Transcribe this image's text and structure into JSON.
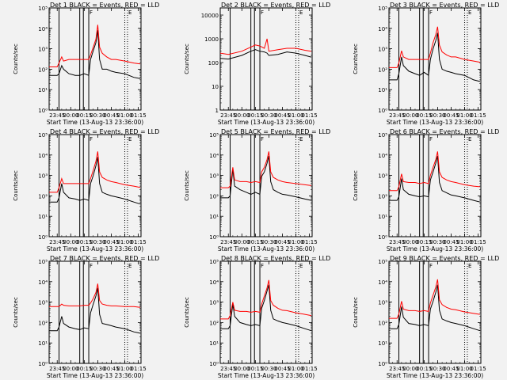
{
  "panels": [
    {
      "title": "Det  1  BLACK = Events, RED = LLD",
      "ylabel": "Counts/sec",
      "xlabel": "Start Time (13-Aug-13 23:36:00)",
      "yticks": [
        "10⁰",
        "10¹",
        "10²",
        "10³",
        "10⁴",
        "10⁵"
      ]
    },
    {
      "title": "Det  2  BLACK = Events, RED = LLD",
      "ylabel": "Counts/sec",
      "xlabel": "Start Time (13-Aug-13 23:36:00)",
      "yticks": [
        "1",
        "10",
        "100",
        "1000",
        "10000"
      ]
    },
    {
      "title": "Det  3  BLACK = Events, RED = LLD",
      "ylabel": "Counts/sec",
      "xlabel": "Start Time (13-Aug-13 23:36:00)",
      "yticks": [
        "10⁰",
        "10¹",
        "10²",
        "10³",
        "10⁴",
        "10⁵"
      ]
    },
    {
      "title": "Det  4  BLACK = Events, RED = LLD",
      "ylabel": "Counts/sec",
      "xlabel": "Start Time (13-Aug-13 23:36:00)",
      "yticks": [
        "10⁰",
        "10¹",
        "10²",
        "10³",
        "10⁴",
        "10⁵"
      ]
    },
    {
      "title": "Det  5  BLACK = Events, RED = LLD",
      "ylabel": "Counts/sec",
      "xlabel": "Start Time (13-Aug-13 23:36:00)",
      "yticks": [
        "10⁰",
        "10¹",
        "10²",
        "10³",
        "10⁴",
        "10⁵"
      ]
    },
    {
      "title": "Det  6  BLACK = Events, RED = LLD",
      "ylabel": "Counts/sec",
      "xlabel": "Start Time (13-Aug-13 23:36:00)",
      "yticks": [
        "10⁰",
        "10¹",
        "10²",
        "10³",
        "10⁴",
        "10⁵"
      ]
    },
    {
      "title": "Det  7  BLACK = Events, RED = LLD",
      "ylabel": "Counts/sec",
      "xlabel": "Start Time (13-Aug-13 23:36:00)",
      "yticks": [
        "10⁰",
        "10¹",
        "10²",
        "10³",
        "10⁴",
        "10⁵"
      ]
    },
    {
      "title": "Det  8  BLACK = Events, RED = LLD",
      "ylabel": "Counts/sec",
      "xlabel": "Start Time (13-Aug-13 23:36:00)",
      "yticks": [
        "10⁰",
        "10¹",
        "10²",
        "10³",
        "10⁴",
        "10⁵"
      ]
    },
    {
      "title": "Det  9  BLACK = Events, RED = LLD",
      "ylabel": "Counts/sec",
      "xlabel": "Start Time (13-Aug-13 23:36:00)",
      "yticks": [
        "10⁰",
        "10¹",
        "10²",
        "10³",
        "10⁴",
        "10⁵"
      ]
    }
  ],
  "chart_data": {
    "type": "line",
    "x_tick_labels": [
      "23:45",
      "00:00",
      "00:15",
      "00:30",
      "00:45",
      "01:00",
      "01:15"
    ],
    "x_ticks": [
      "23:45",
      "00:00",
      "00:15",
      "00:30",
      "00:45",
      "01:00",
      "01:15"
    ],
    "x_range": [
      "23:36",
      "01:18"
    ],
    "y_scale": "log",
    "colors": {
      "events": "#000000",
      "lld": "#ff0000"
    },
    "markers": {
      "solid_vertical_lines": [
        "23:47",
        "00:10",
        "00:14",
        "00:20"
      ],
      "dotted_vertical_lines": [
        "01:00",
        "01:03"
      ],
      "flag_labels": [
        "F",
        "E"
      ],
      "flag_times": [
        "00:20",
        "01:03"
      ]
    },
    "panels": [
      {
        "ylim": [
          1,
          100000
        ],
        "events": {
          "x": [
            "23:36",
            "23:45",
            "23:47",
            "23:50",
            "23:52",
            "23:58",
            "00:05",
            "00:10",
            "00:15",
            "00:20",
            "00:22",
            "00:25",
            "00:28",
            "00:30",
            "00:32",
            "00:35",
            "00:40",
            "00:45",
            "00:50",
            "01:00",
            "01:10",
            "01:17"
          ],
          "y": [
            50,
            50,
            60,
            150,
            100,
            60,
            50,
            50,
            60,
            50,
            300,
            800,
            2000,
            8000,
            300,
            100,
            100,
            80,
            70,
            60,
            40,
            35
          ]
        },
        "lld": {
          "x": [
            "23:36",
            "23:45",
            "23:47",
            "23:50",
            "23:52",
            "23:58",
            "00:05",
            "00:10",
            "00:15",
            "00:20",
            "00:22",
            "00:25",
            "00:28",
            "00:30",
            "00:32",
            "00:35",
            "00:40",
            "00:45",
            "00:50",
            "01:00",
            "01:10",
            "01:17"
          ],
          "y": [
            130,
            130,
            200,
            400,
            250,
            300,
            300,
            300,
            300,
            300,
            500,
            1200,
            3000,
            15000,
            1200,
            600,
            400,
            300,
            300,
            250,
            200,
            180
          ]
        }
      },
      {
        "ylim": [
          1,
          20000
        ],
        "events": {
          "x": [
            "23:36",
            "23:45",
            "00:00",
            "00:10",
            "00:15",
            "00:20",
            "00:25",
            "00:28",
            "00:30",
            "00:40",
            "00:50",
            "01:00",
            "01:10",
            "01:17"
          ],
          "y": [
            150,
            140,
            200,
            300,
            350,
            300,
            280,
            250,
            200,
            220,
            280,
            250,
            200,
            170
          ]
        },
        "lld": {
          "x": [
            "23:36",
            "23:45",
            "00:00",
            "00:10",
            "00:15",
            "00:20",
            "00:25",
            "00:28",
            "00:30",
            "00:40",
            "00:50",
            "01:00",
            "01:10",
            "01:17"
          ],
          "y": [
            250,
            220,
            300,
            450,
            550,
            500,
            400,
            1000,
            300,
            350,
            400,
            400,
            330,
            300
          ]
        }
      },
      {
        "ylim": [
          1,
          100000
        ],
        "events": {
          "x": [
            "23:36",
            "23:45",
            "23:47",
            "23:50",
            "23:52",
            "23:58",
            "00:05",
            "00:10",
            "00:15",
            "00:20",
            "00:22",
            "00:25",
            "00:28",
            "00:30",
            "00:32",
            "00:35",
            "00:40",
            "00:45",
            "00:50",
            "01:00",
            "01:10",
            "01:17"
          ],
          "y": [
            30,
            30,
            60,
            400,
            150,
            80,
            60,
            50,
            70,
            50,
            300,
            1000,
            2500,
            6000,
            300,
            100,
            80,
            70,
            60,
            50,
            30,
            25
          ]
        },
        "lld": {
          "x": [
            "23:36",
            "23:45",
            "23:47",
            "23:50",
            "23:52",
            "23:58",
            "00:05",
            "00:10",
            "00:15",
            "00:20",
            "00:22",
            "00:25",
            "00:28",
            "00:30",
            "00:32",
            "00:35",
            "00:40",
            "00:45",
            "00:50",
            "01:00",
            "01:10",
            "01:17"
          ],
          "y": [
            120,
            120,
            200,
            800,
            400,
            300,
            300,
            300,
            300,
            300,
            600,
            2000,
            5000,
            12000,
            1500,
            700,
            500,
            400,
            400,
            300,
            250,
            220
          ]
        }
      },
      {
        "ylim": [
          1,
          100000
        ],
        "events": {
          "x": [
            "23:36",
            "23:45",
            "23:47",
            "23:50",
            "23:52",
            "23:58",
            "00:05",
            "00:10",
            "00:15",
            "00:20",
            "00:22",
            "00:25",
            "00:28",
            "00:30",
            "00:32",
            "00:35",
            "00:40",
            "00:45",
            "00:50",
            "01:00",
            "01:10",
            "01:17"
          ],
          "y": [
            50,
            50,
            80,
            400,
            150,
            80,
            70,
            60,
            70,
            60,
            400,
            1000,
            3000,
            8000,
            400,
            150,
            120,
            100,
            90,
            70,
            50,
            40
          ]
        },
        "lld": {
          "x": [
            "23:36",
            "23:45",
            "23:47",
            "23:50",
            "23:52",
            "23:58",
            "00:05",
            "00:10",
            "00:15",
            "00:20",
            "00:22",
            "00:25",
            "00:28",
            "00:30",
            "00:32",
            "00:35",
            "00:40",
            "00:45",
            "00:50",
            "01:00",
            "01:10",
            "01:17"
          ],
          "y": [
            150,
            150,
            250,
            700,
            400,
            400,
            400,
            400,
            400,
            400,
            700,
            1800,
            5000,
            15000,
            1500,
            800,
            600,
            500,
            450,
            350,
            300,
            260
          ]
        }
      },
      {
        "ylim": [
          1,
          100000
        ],
        "events": {
          "x": [
            "23:36",
            "23:45",
            "23:47",
            "23:50",
            "23:52",
            "23:58",
            "00:05",
            "00:10",
            "00:15",
            "00:20",
            "00:22",
            "00:25",
            "00:28",
            "00:30",
            "00:32",
            "00:35",
            "00:40",
            "00:45",
            "00:50",
            "01:00",
            "01:10",
            "01:17"
          ],
          "y": [
            80,
            80,
            100,
            2000,
            300,
            200,
            150,
            120,
            150,
            120,
            900,
            1500,
            4000,
            9000,
            500,
            200,
            150,
            120,
            110,
            90,
            70,
            60
          ]
        },
        "lld": {
          "x": [
            "23:36",
            "23:45",
            "23:47",
            "23:50",
            "23:52",
            "23:58",
            "00:05",
            "00:10",
            "00:15",
            "00:20",
            "00:22",
            "00:25",
            "00:28",
            "00:30",
            "00:32",
            "00:35",
            "00:40",
            "00:45",
            "00:50",
            "01:00",
            "01:10",
            "01:17"
          ],
          "y": [
            250,
            250,
            300,
            2500,
            600,
            500,
            500,
            450,
            500,
            450,
            1500,
            2500,
            6000,
            15000,
            1500,
            800,
            600,
            500,
            450,
            400,
            350,
            320
          ]
        }
      },
      {
        "ylim": [
          1,
          100000
        ],
        "events": {
          "x": [
            "23:36",
            "23:45",
            "23:47",
            "23:50",
            "23:52",
            "23:58",
            "00:05",
            "00:10",
            "00:15",
            "00:20",
            "00:22",
            "00:25",
            "00:28",
            "00:30",
            "00:32",
            "00:35",
            "00:40",
            "00:45",
            "00:50",
            "01:00",
            "01:10",
            "01:17"
          ],
          "y": [
            60,
            60,
            90,
            700,
            200,
            120,
            100,
            90,
            100,
            90,
            600,
            1500,
            4000,
            9000,
            450,
            180,
            140,
            110,
            100,
            80,
            60,
            50
          ]
        },
        "lld": {
          "x": [
            "23:36",
            "23:45",
            "23:47",
            "23:50",
            "23:52",
            "23:58",
            "00:05",
            "00:10",
            "00:15",
            "00:20",
            "00:22",
            "00:25",
            "00:28",
            "00:30",
            "00:32",
            "00:35",
            "00:40",
            "00:45",
            "00:50",
            "01:00",
            "01:10",
            "01:17"
          ],
          "y": [
            180,
            180,
            280,
            1200,
            500,
            450,
            450,
            400,
            450,
            400,
            1000,
            2500,
            6000,
            15000,
            1500,
            800,
            600,
            500,
            450,
            350,
            300,
            280
          ]
        }
      },
      {
        "ylim": [
          1,
          100000
        ],
        "events": {
          "x": [
            "23:36",
            "23:45",
            "23:47",
            "23:50",
            "23:52",
            "23:58",
            "00:05",
            "00:10",
            "00:15",
            "00:20",
            "00:22",
            "00:25",
            "00:28",
            "00:30",
            "00:32",
            "00:35",
            "00:40",
            "00:45",
            "00:50",
            "01:00",
            "01:10",
            "01:17"
          ],
          "y": [
            40,
            40,
            60,
            200,
            90,
            60,
            50,
            45,
            55,
            50,
            300,
            800,
            2000,
            5000,
            250,
            90,
            80,
            70,
            60,
            50,
            35,
            30
          ]
        },
        "lld": {
          "x": [
            "23:36",
            "23:45",
            "23:47",
            "23:50",
            "23:52",
            "23:58",
            "00:05",
            "00:10",
            "00:15",
            "00:20",
            "00:22",
            "00:25",
            "00:28",
            "00:30",
            "00:32",
            "00:35",
            "00:40",
            "00:45",
            "00:50",
            "01:00",
            "01:10",
            "01:17"
          ],
          "y": [
            600,
            600,
            600,
            800,
            700,
            650,
            650,
            650,
            700,
            700,
            900,
            1500,
            3000,
            8000,
            1200,
            800,
            700,
            650,
            650,
            600,
            600,
            550
          ]
        }
      },
      {
        "ylim": [
          1,
          100000
        ],
        "events": {
          "x": [
            "23:36",
            "23:45",
            "23:47",
            "23:50",
            "23:52",
            "23:58",
            "00:05",
            "00:10",
            "00:15",
            "00:20",
            "00:22",
            "00:25",
            "00:28",
            "00:30",
            "00:32",
            "00:35",
            "00:40",
            "00:45",
            "00:50",
            "01:00",
            "01:10",
            "01:17"
          ],
          "y": [
            50,
            50,
            70,
            800,
            200,
            100,
            80,
            70,
            80,
            70,
            500,
            1200,
            3500,
            7000,
            400,
            150,
            120,
            100,
            90,
            70,
            50,
            40
          ]
        },
        "lld": {
          "x": [
            "23:36",
            "23:45",
            "23:47",
            "23:50",
            "23:52",
            "23:58",
            "00:05",
            "00:10",
            "00:15",
            "00:20",
            "00:22",
            "00:25",
            "00:28",
            "00:30",
            "00:32",
            "00:35",
            "00:40",
            "00:45",
            "00:50",
            "01:00",
            "01:10",
            "01:17"
          ],
          "y": [
            150,
            150,
            220,
            1000,
            400,
            350,
            350,
            320,
            350,
            320,
            800,
            2000,
            5000,
            12000,
            1200,
            700,
            500,
            400,
            380,
            300,
            250,
            220
          ]
        }
      },
      {
        "ylim": [
          1,
          100000
        ],
        "events": {
          "x": [
            "23:36",
            "23:45",
            "23:47",
            "23:50",
            "23:52",
            "23:58",
            "00:05",
            "00:10",
            "00:15",
            "00:20",
            "00:22",
            "00:25",
            "00:28",
            "00:30",
            "00:32",
            "00:35",
            "00:40",
            "00:45",
            "00:50",
            "01:00",
            "01:10",
            "01:17"
          ],
          "y": [
            50,
            50,
            80,
            600,
            180,
            90,
            80,
            70,
            80,
            70,
            450,
            1100,
            3000,
            7000,
            400,
            150,
            120,
            100,
            90,
            70,
            50,
            40
          ]
        },
        "lld": {
          "x": [
            "23:36",
            "23:45",
            "23:47",
            "23:50",
            "23:52",
            "23:58",
            "00:05",
            "00:10",
            "00:15",
            "00:20",
            "00:22",
            "00:25",
            "00:28",
            "00:30",
            "00:32",
            "00:35",
            "00:40",
            "00:45",
            "00:50",
            "01:00",
            "01:10",
            "01:17"
          ],
          "y": [
            160,
            160,
            260,
            1100,
            450,
            380,
            380,
            350,
            380,
            350,
            900,
            2200,
            5500,
            13000,
            1300,
            750,
            550,
            450,
            420,
            330,
            280,
            250
          ]
        }
      }
    ]
  }
}
